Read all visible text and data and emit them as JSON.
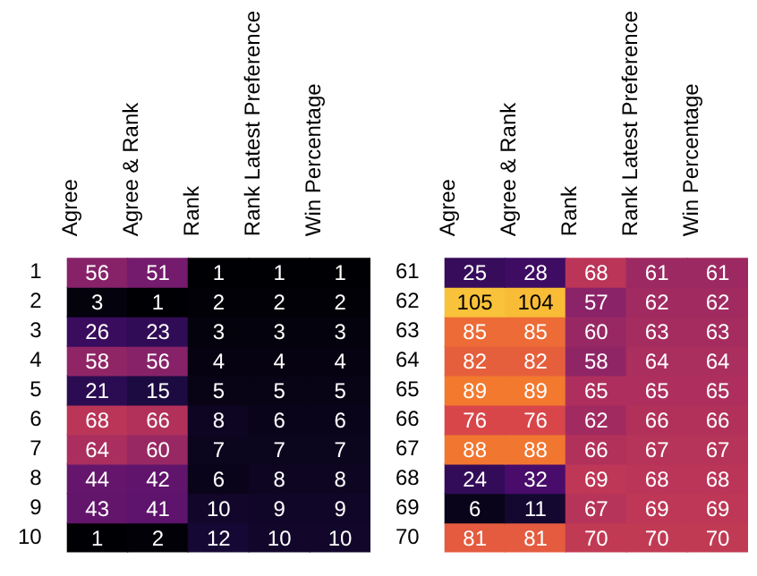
{
  "chart_data": [
    {
      "type": "heatmap",
      "categories": [
        "Agree",
        "Agree & Rank",
        "Rank",
        "Rank Latest Preference",
        "Win Percentage"
      ],
      "y_categories": [
        "1",
        "2",
        "3",
        "4",
        "5",
        "6",
        "7",
        "8",
        "9",
        "10"
      ],
      "data_labels": true,
      "cells": [
        [
          56,
          51,
          1,
          1,
          1
        ],
        [
          3,
          1,
          2,
          2,
          2
        ],
        [
          26,
          23,
          3,
          3,
          3
        ],
        [
          58,
          56,
          4,
          4,
          4
        ],
        [
          21,
          15,
          5,
          5,
          5
        ],
        [
          68,
          66,
          8,
          6,
          6
        ],
        [
          64,
          60,
          7,
          7,
          7
        ],
        [
          44,
          42,
          6,
          8,
          8
        ],
        [
          43,
          41,
          10,
          9,
          9
        ],
        [
          1,
          2,
          12,
          10,
          10
        ]
      ]
    },
    {
      "type": "heatmap",
      "categories": [
        "Agree",
        "Agree & Rank",
        "Rank",
        "Rank Latest Preference",
        "Win Percentage"
      ],
      "y_categories": [
        "61",
        "62",
        "63",
        "64",
        "65",
        "66",
        "67",
        "68",
        "69",
        "70"
      ],
      "data_labels": true,
      "cells": [
        [
          25,
          28,
          68,
          61,
          61
        ],
        [
          105,
          104,
          57,
          62,
          62
        ],
        [
          85,
          85,
          60,
          63,
          63
        ],
        [
          82,
          82,
          58,
          64,
          64
        ],
        [
          89,
          89,
          65,
          65,
          65
        ],
        [
          76,
          76,
          62,
          66,
          66
        ],
        [
          88,
          88,
          66,
          67,
          67
        ],
        [
          24,
          32,
          69,
          68,
          68
        ],
        [
          6,
          11,
          67,
          69,
          69
        ],
        [
          81,
          81,
          70,
          70,
          70
        ]
      ]
    }
  ]
}
